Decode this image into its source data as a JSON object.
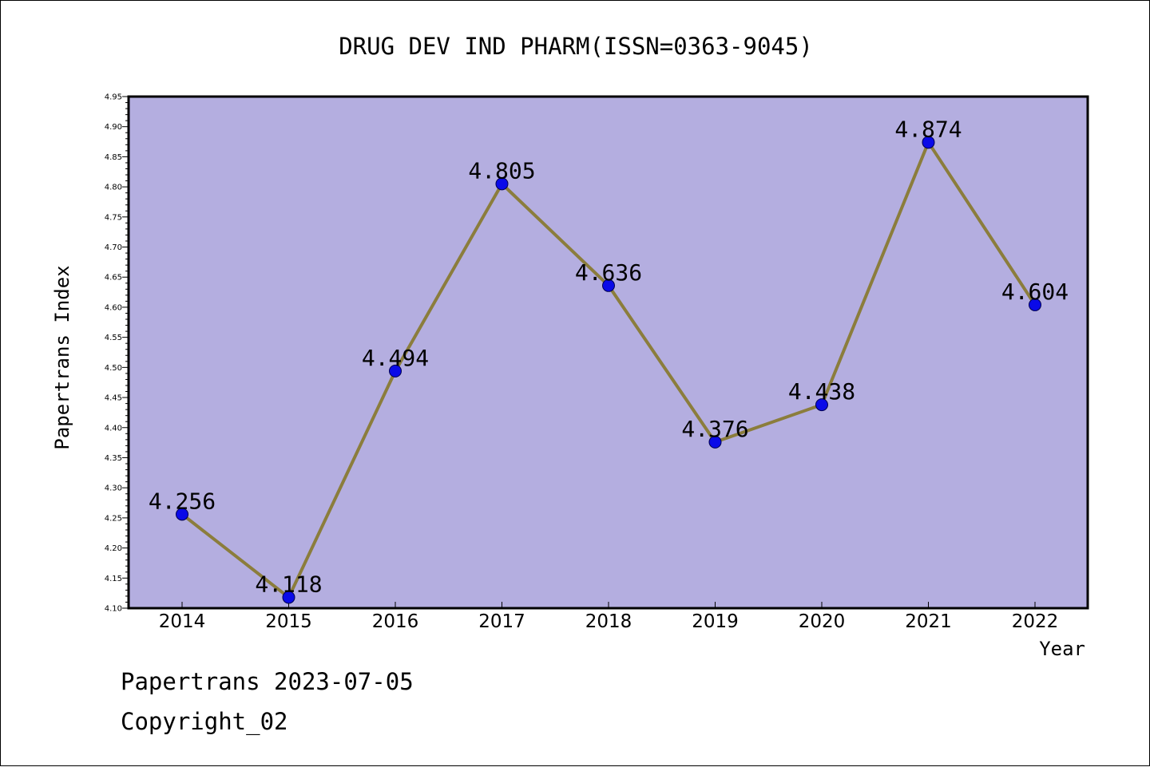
{
  "chart_data": {
    "type": "line",
    "title": "DRUG DEV IND PHARM(ISSN=0363-9045)",
    "xlabel": "Year",
    "ylabel": "Papertrans Index",
    "categories": [
      "2014",
      "2015",
      "2016",
      "2017",
      "2018",
      "2019",
      "2020",
      "2021",
      "2022"
    ],
    "series": [
      {
        "values": [
          4.256,
          4.118,
          4.494,
          4.805,
          4.636,
          4.376,
          4.438,
          4.874,
          4.604
        ],
        "data_labels": [
          "4.256",
          "4.118",
          "4.494",
          "4.805",
          "4.636",
          "4.376",
          "4.438",
          "4.874",
          "4.604"
        ]
      }
    ],
    "ylim": [
      4.1,
      4.95
    ],
    "yticks": [
      "4.10",
      "4.15",
      "4.20",
      "4.25",
      "4.30",
      "4.35",
      "4.40",
      "4.45",
      "4.50",
      "4.55",
      "4.60",
      "4.65",
      "4.70",
      "4.75",
      "4.80",
      "4.85",
      "4.90",
      "4.95"
    ],
    "grid": false,
    "legend": "none",
    "colors": {
      "plot_background": "#b4aee0",
      "line": "#8b7d3c",
      "marker": "#0a0ae8"
    }
  },
  "footer": {
    "line1": "Papertrans 2023-07-05",
    "line2": "Copyright_02"
  }
}
